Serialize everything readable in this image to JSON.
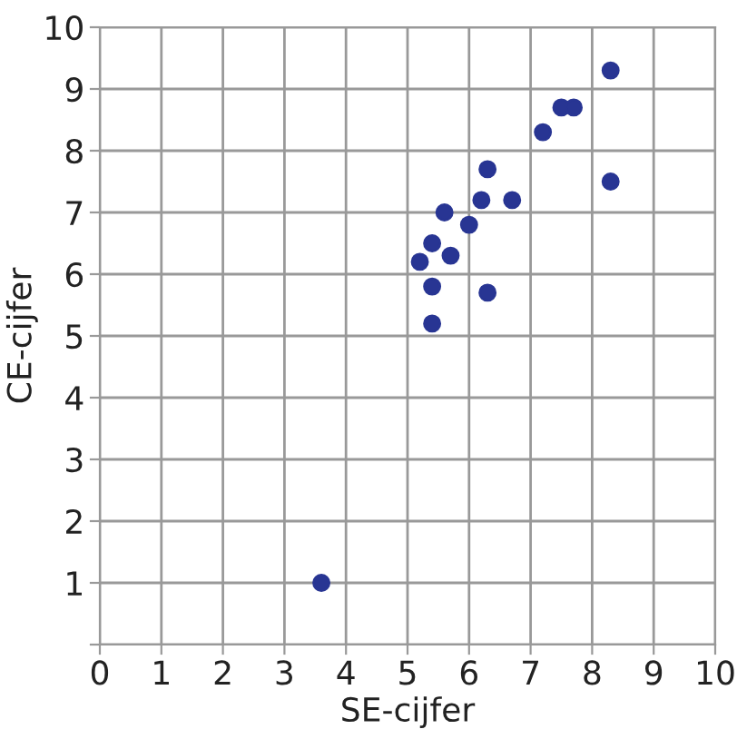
{
  "chart_data": {
    "type": "scatter",
    "xlabel": "SE-cijfer",
    "ylabel": "CE-cijfer",
    "x": [
      8.3,
      7.5,
      7.7,
      7.2,
      8.3,
      6.3,
      6.2,
      6.7,
      5.6,
      6.0,
      5.4,
      5.7,
      5.2,
      5.4,
      6.3,
      5.4,
      3.6
    ],
    "series": [
      {
        "color": "#283593",
        "values": [
          9.3,
          8.7,
          8.7,
          8.3,
          7.5,
          7.7,
          7.2,
          7.2,
          7.0,
          6.8,
          6.5,
          6.3,
          6.2,
          5.8,
          5.7,
          5.2,
          1.0
        ]
      }
    ],
    "xlim": [
      0,
      10
    ],
    "ylim": [
      0,
      10
    ],
    "xticks": [
      0,
      1,
      2,
      3,
      4,
      5,
      6,
      7,
      8,
      9,
      10
    ],
    "yticks": [
      {
        "value": 0,
        "label": null
      },
      1,
      2,
      3,
      4,
      5,
      6,
      7,
      8,
      9,
      10
    ],
    "grid": true,
    "marker": "circle"
  }
}
